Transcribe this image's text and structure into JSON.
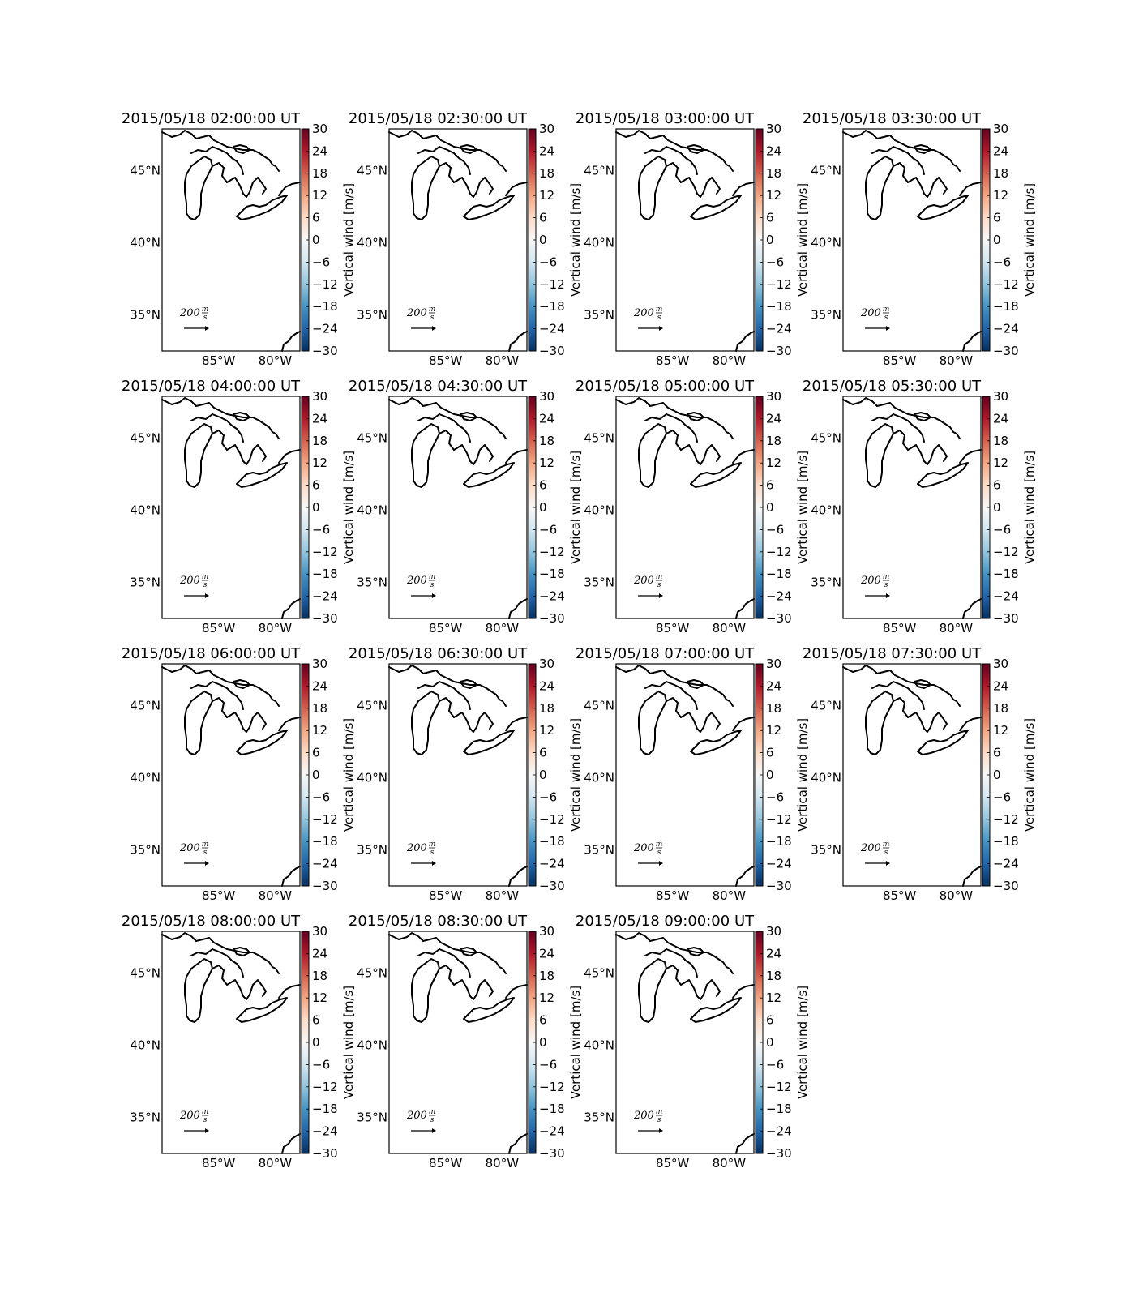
{
  "chart_data": {
    "type": "map",
    "panels": [
      {
        "title": "2015/05/18 02:00:00 UT"
      },
      {
        "title": "2015/05/18 02:30:00 UT"
      },
      {
        "title": "2015/05/18 03:00:00 UT"
      },
      {
        "title": "2015/05/18 03:30:00 UT"
      },
      {
        "title": "2015/05/18 04:00:00 UT"
      },
      {
        "title": "2015/05/18 04:30:00 UT"
      },
      {
        "title": "2015/05/18 05:00:00 UT"
      },
      {
        "title": "2015/05/18 05:30:00 UT"
      },
      {
        "title": "2015/05/18 06:00:00 UT"
      },
      {
        "title": "2015/05/18 06:30:00 UT"
      },
      {
        "title": "2015/05/18 07:00:00 UT"
      },
      {
        "title": "2015/05/18 07:30:00 UT"
      },
      {
        "title": "2015/05/18 08:00:00 UT"
      },
      {
        "title": "2015/05/18 08:30:00 UT"
      },
      {
        "title": "2015/05/18 09:00:00 UT"
      }
    ],
    "lat_ticks": [
      "45°N",
      "40°N",
      "35°N"
    ],
    "lat_values": [
      45,
      40,
      35
    ],
    "lon_ticks": [
      "85°W",
      "80°W"
    ],
    "lon_values": [
      -85,
      -80
    ],
    "lat_range": [
      32.5,
      47.9
    ],
    "lon_range": [
      -90,
      -77.8
    ],
    "colorbar": {
      "label": "Vertical wind [m/s]",
      "ticks": [
        "30",
        "24",
        "18",
        "12",
        "6",
        "0",
        "−6",
        "−12",
        "−18",
        "−24",
        "−30"
      ],
      "range": [
        -30,
        30
      ],
      "colormap": "RdBu_r"
    },
    "quiver_key": {
      "value": "200",
      "unit_numerator": "m",
      "unit_denominator": "s"
    }
  }
}
